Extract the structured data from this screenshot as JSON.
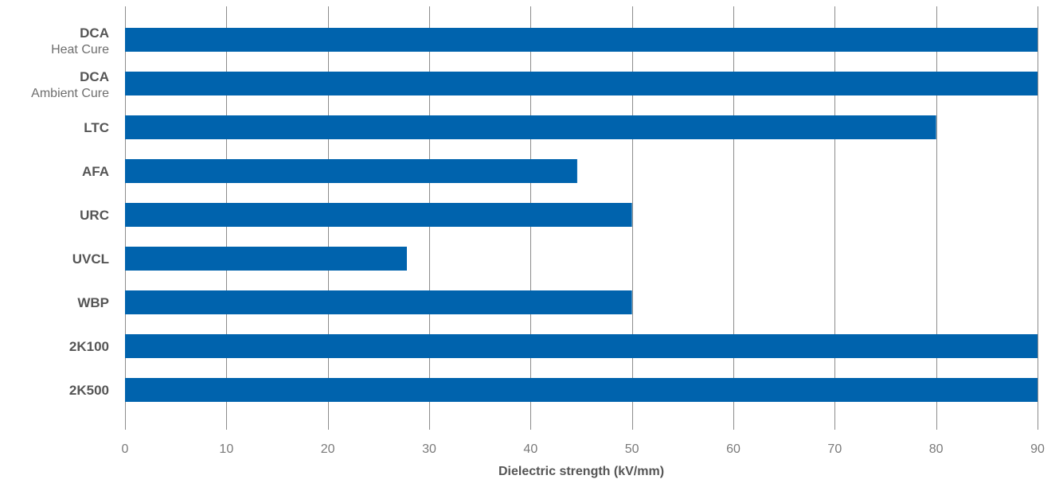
{
  "chart_data": {
    "type": "bar",
    "orientation": "horizontal",
    "title": "",
    "xlabel": "Dielectric strength (kV/mm)",
    "ylabel": "",
    "xlim": [
      0,
      90
    ],
    "xticks": [
      0,
      10,
      20,
      30,
      40,
      50,
      60,
      70,
      80,
      90
    ],
    "grid": "vertical",
    "legend": "none",
    "bar_color": "#0063ad",
    "categories": [
      {
        "label": "DCA",
        "sublabel": "Heat Cure"
      },
      {
        "label": "DCA",
        "sublabel": "Ambient Cure"
      },
      {
        "label": "LTC",
        "sublabel": ""
      },
      {
        "label": "AFA",
        "sublabel": ""
      },
      {
        "label": "URC",
        "sublabel": ""
      },
      {
        "label": "UVCL",
        "sublabel": ""
      },
      {
        "label": "WBP",
        "sublabel": ""
      },
      {
        "label": "2K100",
        "sublabel": ""
      },
      {
        "label": "2K500",
        "sublabel": ""
      }
    ],
    "values": [
      90,
      90,
      80,
      44.6,
      50,
      27.8,
      50,
      90,
      90
    ]
  }
}
